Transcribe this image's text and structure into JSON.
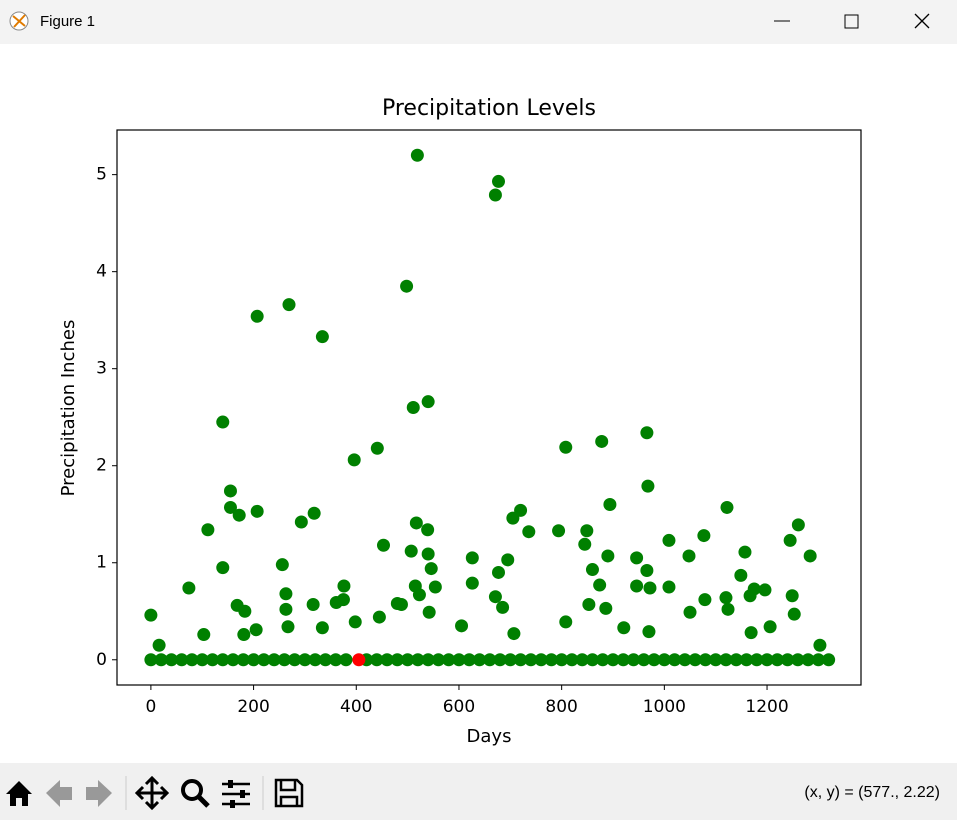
{
  "window": {
    "title": "Figure 1",
    "status": "(x, y) = (577., 2.22)"
  },
  "chart_data": {
    "type": "scatter",
    "title": "Precipitation Levels",
    "x_label": "Days",
    "y_label": "Precipitation Inches",
    "xlim": [
      -66,
      1383
    ],
    "ylim": [
      -0.26,
      5.46
    ],
    "xticks": [
      0,
      200,
      400,
      600,
      800,
      1000,
      1200
    ],
    "yticks": [
      0,
      1,
      2,
      3,
      4,
      5
    ],
    "series": [
      {
        "color": "#008000",
        "x": [
          0,
          16,
          74,
          103,
          111,
          140,
          140,
          155,
          155,
          168,
          172,
          183,
          181,
          207,
          207,
          205,
          256,
          263,
          263,
          269,
          267,
          293,
          318,
          316,
          334,
          334,
          361,
          376,
          375,
          396,
          398,
          441,
          445,
          453,
          480,
          488,
          498,
          511,
          507,
          519,
          517,
          515,
          523,
          540,
          539,
          540,
          546,
          554,
          542,
          605,
          626,
          626,
          671,
          677,
          671,
          677,
          685,
          695,
          705,
          720,
          707,
          736,
          794,
          808,
          808,
          845,
          849,
          853,
          860,
          874,
          878,
          886,
          890,
          894,
          921,
          946,
          946,
          966,
          968,
          966,
          972,
          970,
          1009,
          1009,
          1048,
          1050,
          1077,
          1079,
          1122,
          1120,
          1124,
          1149,
          1157,
          1167,
          1169,
          1175,
          1196,
          1206,
          1245,
          1249,
          1253,
          1261,
          1284,
          1303,
          0,
          20,
          40,
          60,
          80,
          100,
          120,
          140,
          160,
          180,
          200,
          220,
          240,
          260,
          280,
          300,
          320,
          340,
          360,
          380,
          420,
          440,
          460,
          480,
          500,
          520,
          540,
          560,
          580,
          600,
          620,
          640,
          660,
          680,
          700,
          720,
          740,
          760,
          780,
          800,
          820,
          840,
          860,
          880,
          900,
          920,
          940,
          960,
          980,
          1000,
          1020,
          1040,
          1060,
          1080,
          1100,
          1120,
          1140,
          1160,
          1180,
          1200,
          1220,
          1240,
          1260,
          1280,
          1300,
          1320
        ],
        "values": [
          0.46,
          0.15,
          0.74,
          0.26,
          1.34,
          2.45,
          0.95,
          1.74,
          1.57,
          0.56,
          1.49,
          0.5,
          0.26,
          3.54,
          1.53,
          0.31,
          0.98,
          0.68,
          0.52,
          3.66,
          0.34,
          1.42,
          1.51,
          0.57,
          3.33,
          0.33,
          0.59,
          0.76,
          0.62,
          2.06,
          0.39,
          2.18,
          0.44,
          1.18,
          0.58,
          0.57,
          3.85,
          2.6,
          1.12,
          5.2,
          1.41,
          0.76,
          0.67,
          2.66,
          1.34,
          1.09,
          0.94,
          0.75,
          0.49,
          0.35,
          1.05,
          0.79,
          4.79,
          4.93,
          0.65,
          0.9,
          0.54,
          1.03,
          1.46,
          1.54,
          0.27,
          1.32,
          1.33,
          2.19,
          0.39,
          1.19,
          1.33,
          0.57,
          0.93,
          0.77,
          2.25,
          0.53,
          1.07,
          1.6,
          0.33,
          1.05,
          0.76,
          2.34,
          1.79,
          0.92,
          0.74,
          0.29,
          1.23,
          0.75,
          1.07,
          0.49,
          1.28,
          0.62,
          1.57,
          0.64,
          0.52,
          0.87,
          1.11,
          0.66,
          0.28,
          0.73,
          0.72,
          0.34,
          1.23,
          0.66,
          0.47,
          1.39,
          1.07,
          0.15,
          0,
          0,
          0,
          0,
          0,
          0,
          0,
          0,
          0,
          0,
          0,
          0,
          0,
          0,
          0,
          0,
          0,
          0,
          0,
          0,
          0,
          0,
          0,
          0,
          0,
          0,
          0,
          0,
          0,
          0,
          0,
          0,
          0,
          0,
          0,
          0,
          0,
          0,
          0,
          0,
          0,
          0,
          0,
          0,
          0,
          0,
          0,
          0,
          0,
          0,
          0,
          0,
          0,
          0,
          0,
          0,
          0,
          0,
          0,
          0,
          0,
          0,
          0,
          0,
          0,
          0
        ]
      },
      {
        "color": "#ff0000",
        "x": [
          405
        ],
        "values": [
          0
        ]
      }
    ]
  }
}
